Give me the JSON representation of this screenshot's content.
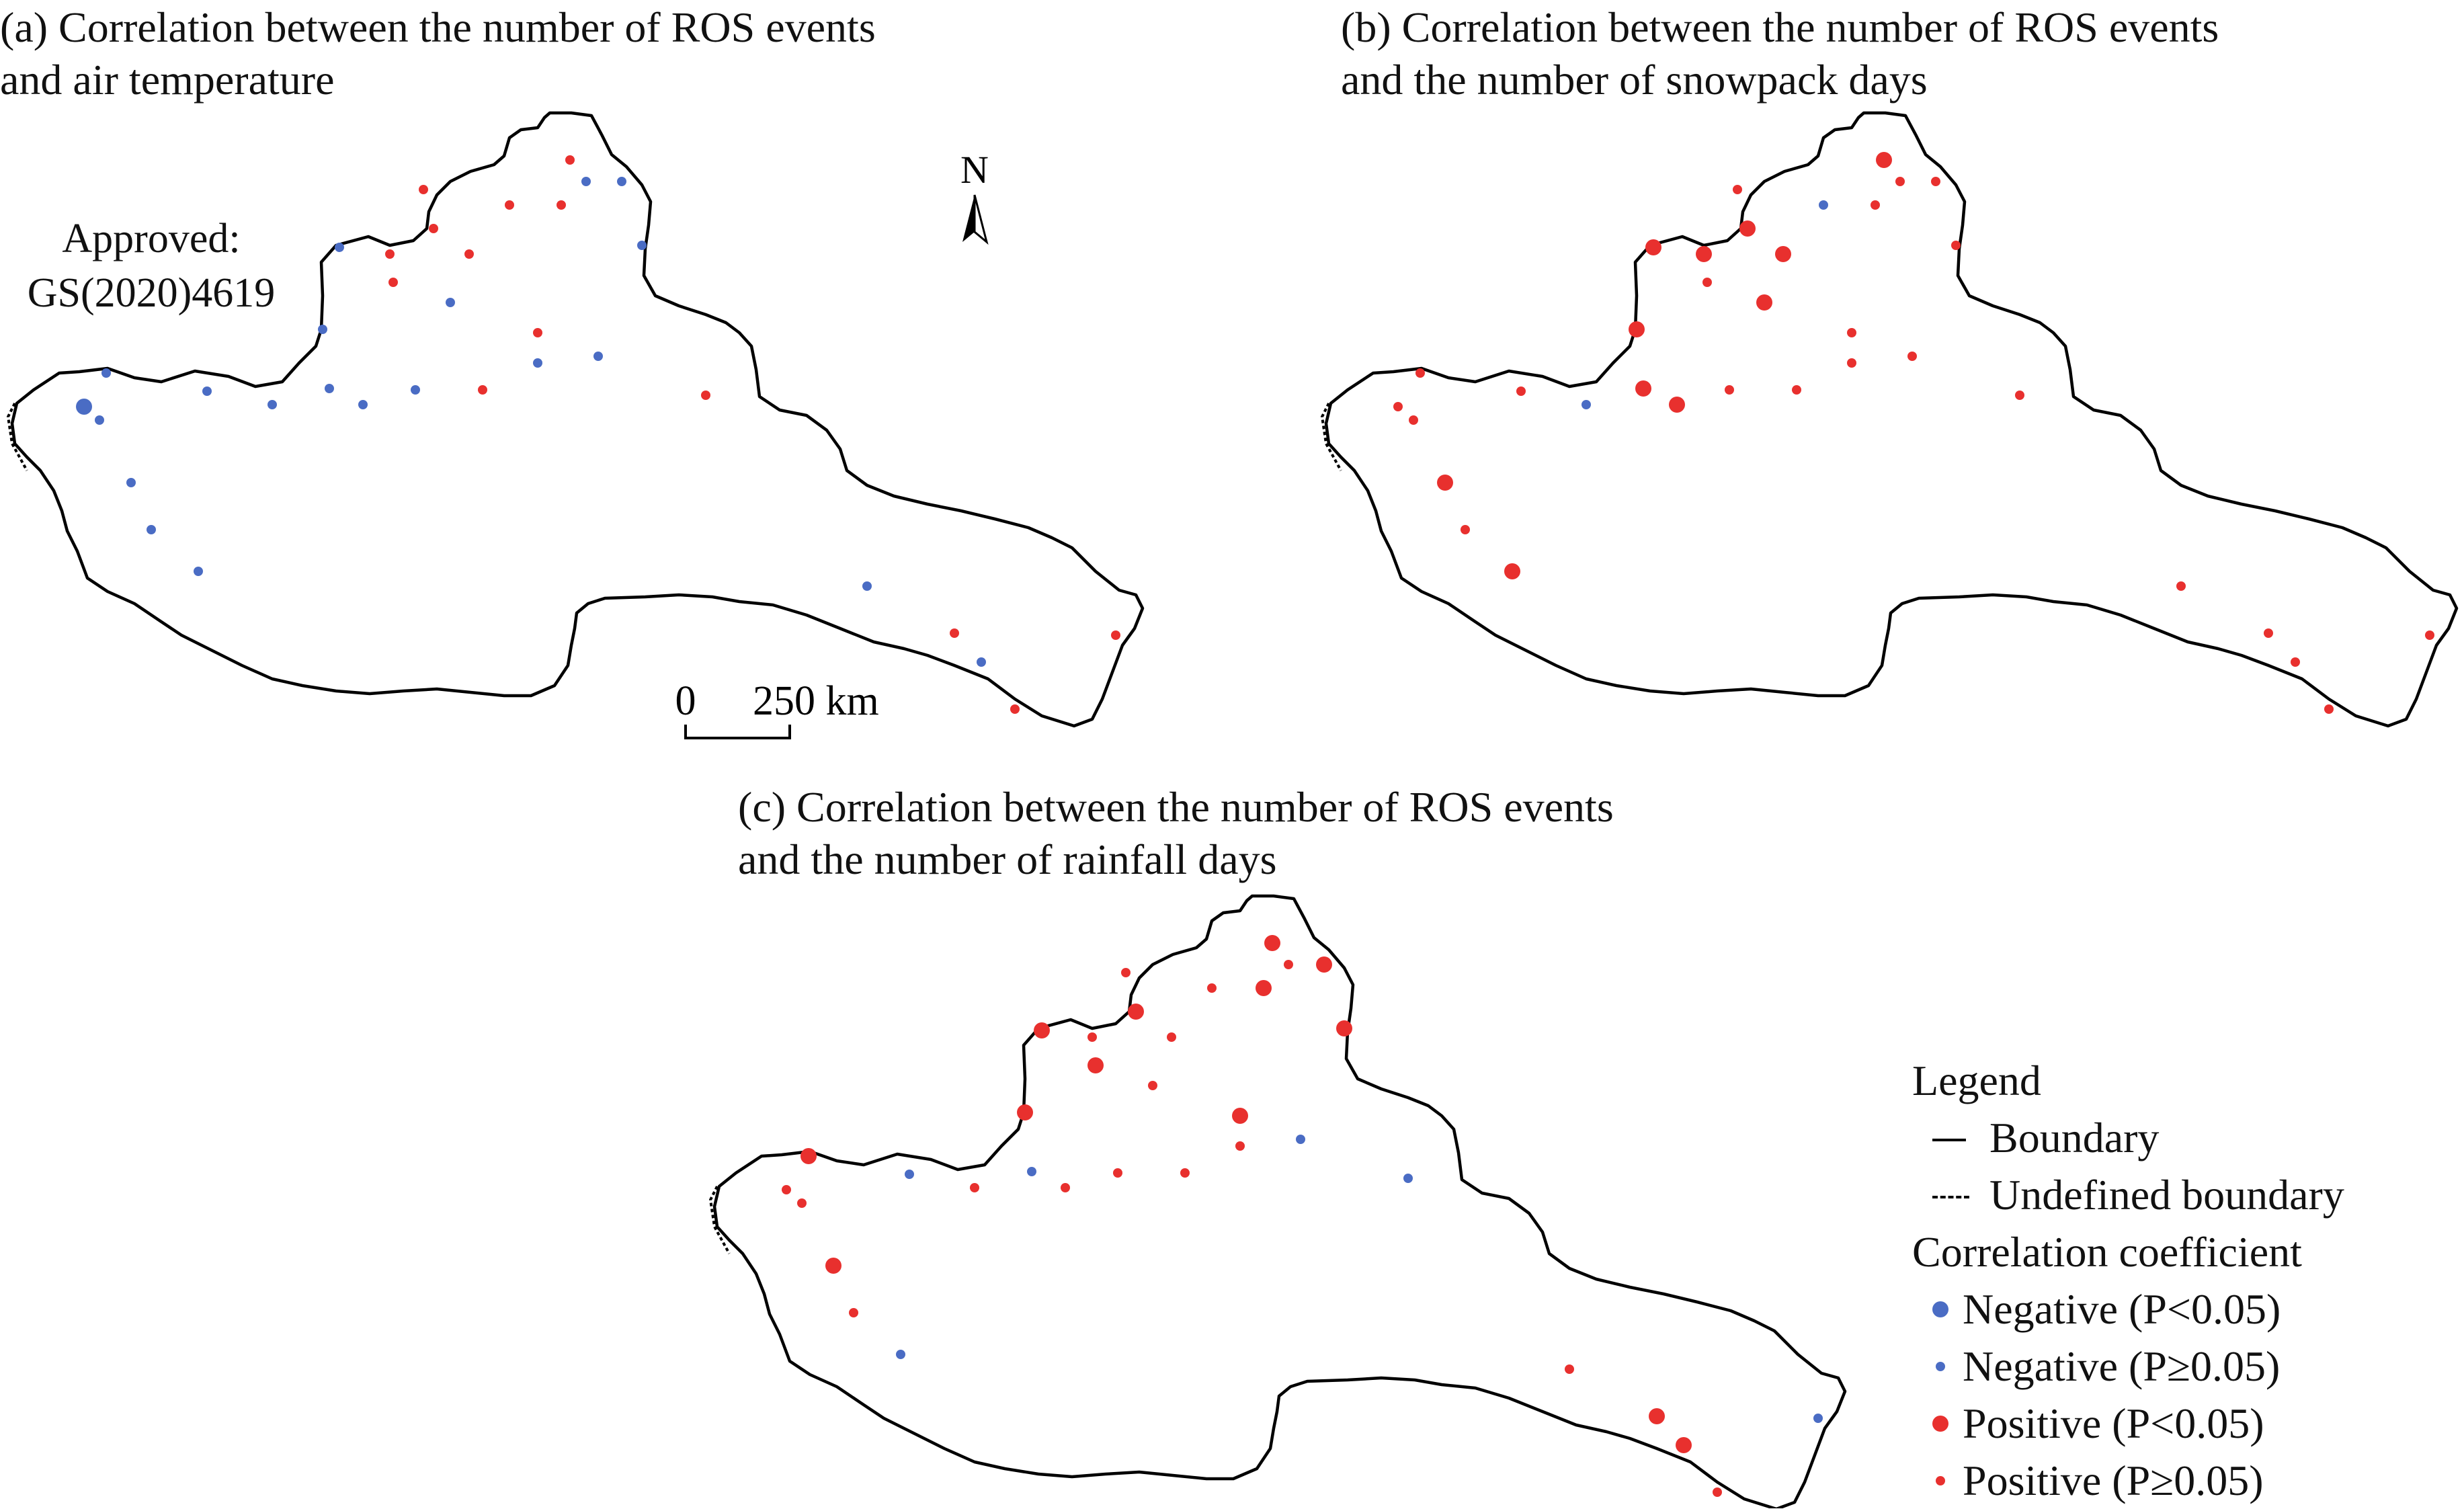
{
  "titles": {
    "a": [
      "(a) Correlation between the number of ROS events",
      "and air temperature"
    ],
    "b": [
      "(b) Correlation between the number of ROS events",
      "and the number of snowpack days"
    ],
    "c": [
      "(c) Correlation between the number of ROS events",
      "and the number of rainfall days"
    ]
  },
  "approval": [
    "Approved:",
    "GS(2020)4619"
  ],
  "north_arrow": "N",
  "scale_bar": {
    "start": "0",
    "end": "250 km"
  },
  "legend": {
    "title": "Legend",
    "boundary": "Boundary",
    "undefined_boundary": "Undefined boundary",
    "coef_title": "Correlation coefficient",
    "items": [
      {
        "text": "Negative (P<0.05)",
        "color": "#4a6cc4",
        "size": "large"
      },
      {
        "text": "Negative (P≥0.05)",
        "color": "#4a6cc4",
        "size": "small"
      },
      {
        "text": "Positive (P<0.05)",
        "color": "#e8302e",
        "size": "large"
      },
      {
        "text": "Positive (P≥0.05)",
        "color": "#e8302e",
        "size": "small"
      }
    ]
  },
  "colors": {
    "negative": "#4a6cc4",
    "positive": "#e8302e"
  },
  "map_panels": [
    {
      "name": "a",
      "stations": [
        [
          "n",
          "L"
        ],
        [
          "n",
          "s"
        ],
        [
          "n",
          "s"
        ],
        [
          "n",
          "s"
        ],
        [
          "n",
          "s"
        ],
        [
          "n",
          "s"
        ],
        [
          "n",
          "s"
        ],
        [
          "n",
          "s"
        ],
        [
          "n",
          "s"
        ],
        [
          "n",
          "s"
        ],
        [
          "n",
          "s"
        ],
        [
          "n",
          "s"
        ],
        [
          "p",
          "s"
        ],
        [
          "p",
          "s"
        ],
        [
          "p",
          "s"
        ],
        [
          "p",
          "s"
        ],
        [
          "n",
          "s"
        ],
        [
          "p",
          "s"
        ],
        [
          "n",
          "s"
        ],
        [
          "p",
          "s"
        ],
        [
          "p",
          "s"
        ],
        [
          "n",
          "s"
        ],
        [
          "p",
          "s"
        ],
        [
          "n",
          "s"
        ],
        [
          "n",
          "s"
        ],
        [
          "n",
          "s"
        ],
        [
          "p",
          "s"
        ],
        [
          "p",
          "s"
        ],
        [
          "n",
          "s"
        ],
        [
          "p",
          "s"
        ],
        [
          "n",
          "s"
        ],
        [
          "p",
          "s"
        ],
        [
          "n",
          "s"
        ],
        [
          "p",
          "s"
        ],
        [
          "p",
          "s"
        ]
      ]
    },
    {
      "name": "b",
      "stations": [
        [
          "p",
          "s"
        ],
        [
          "p",
          "s"
        ],
        [
          "p",
          "s"
        ],
        [
          "p",
          "L"
        ],
        [
          "p",
          "s"
        ],
        [
          "p",
          "L"
        ],
        [
          "p",
          "s"
        ],
        [
          "n",
          "s"
        ],
        [
          "p",
          "L"
        ],
        [
          "p",
          "L"
        ],
        [
          "p",
          "L"
        ],
        [
          "p",
          "L"
        ],
        [
          "p",
          "L"
        ],
        [
          "p",
          "s"
        ],
        [
          "p",
          "s"
        ],
        [
          "p",
          "L"
        ],
        [
          "p",
          "L"
        ],
        [
          "p",
          "L"
        ],
        [
          "p",
          "s"
        ],
        [
          "p",
          "s"
        ],
        [
          "n",
          "s"
        ],
        [
          "p",
          "s"
        ],
        [
          "p",
          "s"
        ],
        [
          "p",
          "s"
        ],
        [
          "p",
          "s"
        ],
        [
          "p",
          "s"
        ],
        [
          "p",
          "s"
        ],
        [
          "p",
          "L"
        ],
        [
          "p",
          "s"
        ],
        [
          "p",
          "s"
        ],
        [
          "p",
          "s"
        ],
        [
          "p",
          "s"
        ],
        [
          "p",
          "s"
        ],
        [
          "p",
          "s"
        ],
        [
          "p",
          "s"
        ]
      ]
    },
    {
      "name": "c",
      "stations": [
        [
          "p",
          "s"
        ],
        [
          "p",
          "s"
        ],
        [
          "p",
          "L"
        ],
        [
          "p",
          "L"
        ],
        [
          "p",
          "s"
        ],
        [
          "n",
          "s"
        ],
        [
          "n",
          "s"
        ],
        [
          "p",
          "s"
        ],
        [
          "n",
          "s"
        ],
        [
          "p",
          "s"
        ],
        [
          "p",
          "L"
        ],
        [
          "p",
          "L"
        ],
        [
          "p",
          "s"
        ],
        [
          "p",
          "L"
        ],
        [
          "p",
          "s"
        ],
        [
          "p",
          "L"
        ],
        [
          "p",
          "s"
        ],
        [
          "p",
          "s"
        ],
        [
          "p",
          "s"
        ],
        [
          "p",
          "s"
        ],
        [
          "p",
          "s"
        ],
        [
          "p",
          "s"
        ],
        [
          "p",
          "L"
        ],
        [
          "n",
          "s"
        ],
        [
          "p",
          "s"
        ],
        [
          "p",
          "L"
        ],
        [
          "p",
          "L"
        ],
        [
          "p",
          "L"
        ],
        [
          "p",
          "L"
        ],
        [
          "n",
          "s"
        ],
        [
          "p",
          "s"
        ],
        [
          "p",
          "L"
        ],
        [
          "p",
          "L"
        ],
        [
          "p",
          "s"
        ],
        [
          "n",
          "s"
        ]
      ]
    }
  ]
}
